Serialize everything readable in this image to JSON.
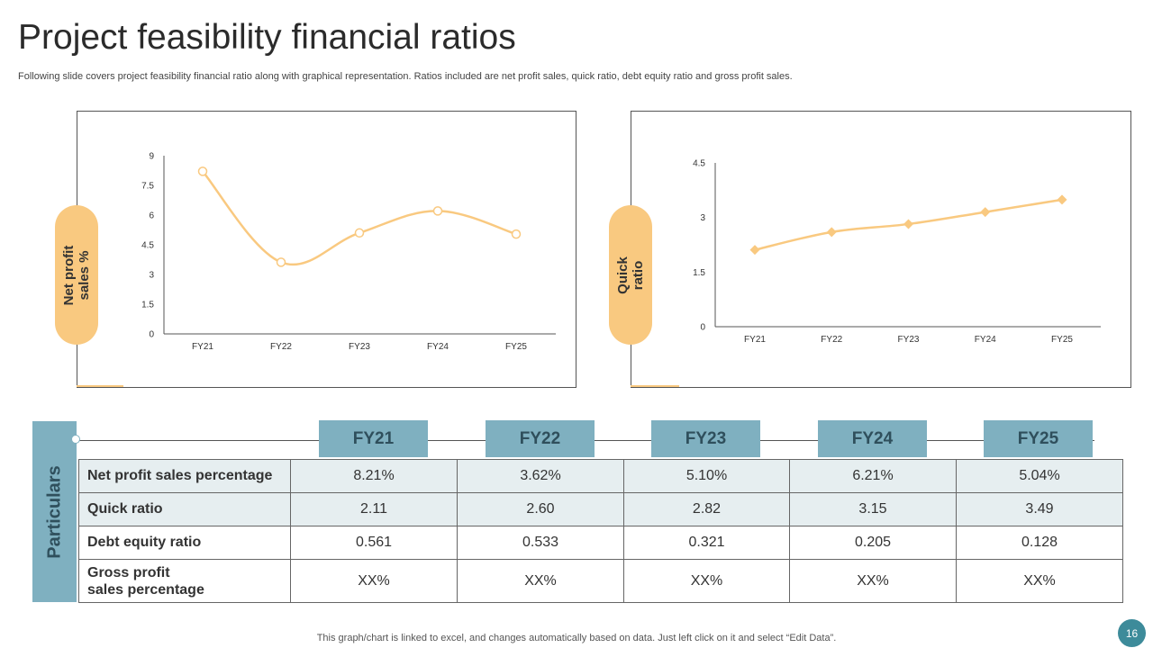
{
  "title": "Project feasibility financial ratios",
  "subtitle": "Following slide covers project feasibility financial ratio along with graphical representation. Ratios included are net profit sales, quick ratio, debt equity ratio and gross profit sales.",
  "chart_data": [
    {
      "type": "line",
      "label": "Net profit sales %",
      "categories": [
        "FY21",
        "FY22",
        "FY23",
        "FY24",
        "FY25"
      ],
      "values": [
        8.21,
        3.62,
        5.1,
        6.21,
        5.04
      ],
      "ylim": [
        0,
        9
      ],
      "yticks": [
        "0",
        "1.5",
        "3",
        "4.5",
        "6",
        "7.5",
        "9"
      ],
      "marker": "circle",
      "color": "#f9c980"
    },
    {
      "type": "line",
      "label": "Quick ratio",
      "categories": [
        "FY21",
        "FY22",
        "FY23",
        "FY24",
        "FY25"
      ],
      "values": [
        2.11,
        2.6,
        2.82,
        3.15,
        3.49
      ],
      "ylim": [
        0,
        4.5
      ],
      "yticks": [
        "0",
        "1.5",
        "3",
        "4.5"
      ],
      "marker": "diamond",
      "color": "#f9c980"
    }
  ],
  "pills": {
    "left_line1": "Net profit",
    "left_line2": "sales %",
    "right_line1": "Quick",
    "right_line2": "ratio"
  },
  "table": {
    "side_label": "Particulars",
    "headers": [
      "FY21",
      "FY22",
      "FY23",
      "FY24",
      "FY25"
    ],
    "rows": [
      {
        "label": "Net profit sales percentage",
        "values": [
          "8.21%",
          "3.62%",
          "5.10%",
          "6.21%",
          "5.04%"
        ]
      },
      {
        "label": "Quick ratio",
        "values": [
          "2.11",
          "2.60",
          "2.82",
          "3.15",
          "3.49"
        ]
      },
      {
        "label": "Debt equity ratio",
        "values": [
          "0.561",
          "0.533",
          "0.321",
          "0.205",
          "0.128"
        ]
      },
      {
        "label_line1": "Gross profit",
        "label_line2": "sales percentage",
        "values": [
          "XX%",
          "XX%",
          "XX%",
          "XX%",
          "XX%"
        ]
      }
    ]
  },
  "footer": "This graph/chart is linked to excel,  and changes automatically based on data. Just left click on it and select “Edit Data”.",
  "page_number": "16",
  "colors": {
    "accent": "#f9c980",
    "header": "#7fb0c0",
    "side_text": "#2f4f5c",
    "page_badge": "#3d8b9a"
  }
}
